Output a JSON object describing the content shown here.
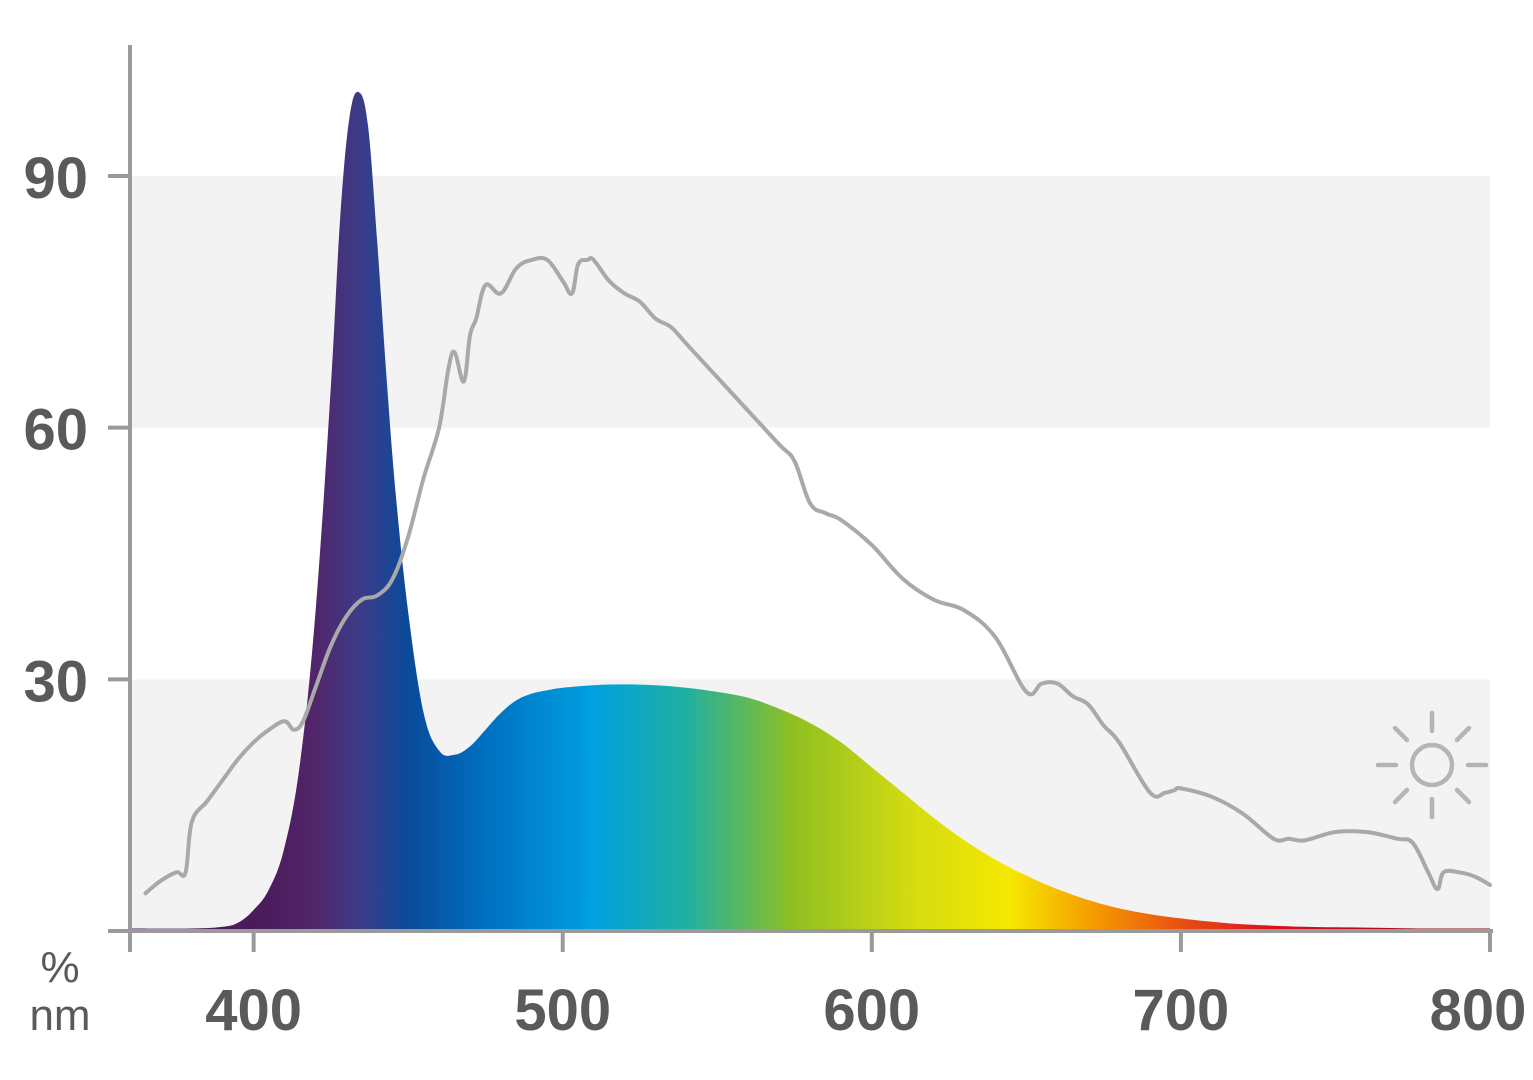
{
  "chart_data": {
    "type": "area",
    "title": "",
    "xlabel": "nm",
    "ylabel": "%",
    "xlim": [
      360,
      800
    ],
    "ylim": [
      0,
      105
    ],
    "x_ticks": [
      400,
      500,
      600,
      700,
      800
    ],
    "y_ticks": [
      30,
      60,
      90
    ],
    "grid": "alternating horizontal bands",
    "colors": {
      "axis": "#9a9a9a",
      "band": "#f3f3f3",
      "daylight_line": "#a9a9a9",
      "tick_text": "#5a5a5a"
    },
    "spectrum_gradient": [
      {
        "nm": 400,
        "color": "#4a1a5a"
      },
      {
        "nm": 420,
        "color": "#52256a"
      },
      {
        "nm": 435,
        "color": "#3a3d8a"
      },
      {
        "nm": 450,
        "color": "#0a4a9a"
      },
      {
        "nm": 475,
        "color": "#0070c0"
      },
      {
        "nm": 510,
        "color": "#00a0e0"
      },
      {
        "nm": 540,
        "color": "#20b0a0"
      },
      {
        "nm": 575,
        "color": "#90c020"
      },
      {
        "nm": 615,
        "color": "#d8dc10"
      },
      {
        "nm": 645,
        "color": "#f5e800"
      },
      {
        "nm": 670,
        "color": "#f5a000"
      },
      {
        "nm": 700,
        "color": "#e85010"
      },
      {
        "nm": 730,
        "color": "#d8101e"
      },
      {
        "nm": 800,
        "color": "#8a0a14"
      }
    ],
    "series": [
      {
        "type": "area",
        "x": [
          360,
          380,
          390,
          395,
          400,
          405,
          410,
          415,
          420,
          425,
          428,
          431,
          434,
          437,
          440,
          443,
          446,
          450,
          455,
          460,
          465,
          470,
          475,
          480,
          485,
          490,
          495,
          500,
          510,
          520,
          530,
          540,
          550,
          560,
          570,
          580,
          590,
          600,
          610,
          620,
          630,
          640,
          650,
          660,
          670,
          680,
          690,
          700,
          710,
          720,
          740,
          760,
          780,
          800
        ],
        "y": [
          0.3,
          0.3,
          0.5,
          1,
          2.5,
          5,
          10,
          20,
          38,
          65,
          85,
          97,
          100,
          96,
          82,
          66,
          52,
          38,
          26,
          21.5,
          21,
          22,
          24,
          26,
          27.5,
          28.3,
          28.7,
          29,
          29.3,
          29.4,
          29.3,
          29,
          28.5,
          27.8,
          26.5,
          24.8,
          22.5,
          19.5,
          16.5,
          13.5,
          10.8,
          8.5,
          6.6,
          5,
          3.7,
          2.7,
          2,
          1.5,
          1.1,
          0.8,
          0.5,
          0.4,
          0.3,
          0.3
        ]
      },
      {
        "type": "line",
        "x": [
          365,
          370,
          375,
          378,
          380,
          385,
          390,
          395,
          400,
          405,
          410,
          413,
          416,
          420,
          425,
          430,
          435,
          440,
          445,
          450,
          455,
          460,
          463,
          465,
          468,
          470,
          472,
          475,
          480,
          485,
          490,
          495,
          500,
          503,
          505,
          508,
          510,
          515,
          520,
          525,
          530,
          535,
          540,
          550,
          560,
          570,
          575,
          580,
          585,
          590,
          600,
          610,
          620,
          630,
          640,
          650,
          655,
          660,
          665,
          670,
          675,
          680,
          690,
          695,
          698,
          700,
          710,
          720,
          730,
          735,
          740,
          750,
          760,
          770,
          775,
          780,
          783,
          785,
          790,
          795,
          800
        ],
        "y": [
          4.5,
          6,
          7,
          7,
          13,
          15.5,
          18,
          20.5,
          22.5,
          24,
          25,
          24,
          25,
          29,
          34,
          37.5,
          39.5,
          40,
          42,
          47,
          54,
          60,
          67,
          69,
          65.5,
          71,
          73,
          77,
          76,
          79,
          80,
          80,
          77.5,
          76,
          79.5,
          80,
          80,
          77.5,
          76,
          75,
          73,
          72,
          70,
          66,
          62,
          58,
          56,
          51,
          49.8,
          49,
          46,
          42,
          39.5,
          38.2,
          35,
          28.5,
          29.5,
          29.5,
          28,
          27,
          24.5,
          22.5,
          16.5,
          16.5,
          16.8,
          17,
          16,
          14,
          11,
          11,
          10.8,
          11.8,
          11.8,
          11,
          10.5,
          7,
          5,
          7,
          7,
          6.5,
          5.5
        ]
      }
    ]
  }
}
